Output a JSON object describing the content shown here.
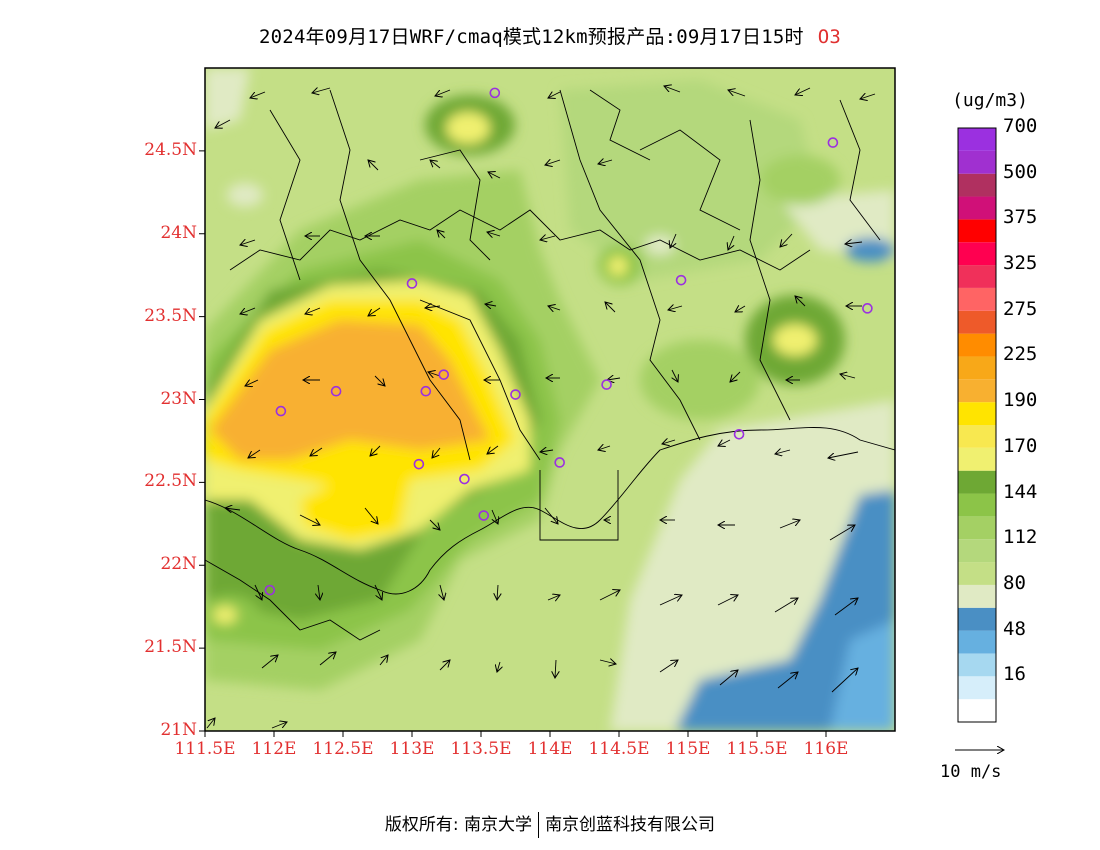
{
  "title": "2024年09月17日WRF/cmaq模式12km预报产品:09月17日15时",
  "pollutant": "O3",
  "colorbar": {
    "unit": "(ug/m3)",
    "bands": [
      {
        "color": "#ffffff"
      },
      {
        "color": "#d6eefa",
        "label": "16"
      },
      {
        "color": "#a6d8f0"
      },
      {
        "color": "#66b0e0",
        "label": "48"
      },
      {
        "color": "#4a8fc4"
      },
      {
        "color": "#e0eac4",
        "label": "80"
      },
      {
        "color": "#c4df86"
      },
      {
        "color": "#b4d87c",
        "label": "112"
      },
      {
        "color": "#a4d064"
      },
      {
        "color": "#8cc448",
        "label": "144"
      },
      {
        "color": "#6ea834"
      },
      {
        "color": "#f0f070",
        "label": "170"
      },
      {
        "color": "#f8e850"
      },
      {
        "color": "#ffe400",
        "label": "190"
      },
      {
        "color": "#f8b030"
      },
      {
        "color": "#f8a818",
        "label": "225"
      },
      {
        "color": "#ff8c00"
      },
      {
        "color": "#ee5a2a",
        "label": "275"
      },
      {
        "color": "#ff6464"
      },
      {
        "color": "#f0305a",
        "label": "325"
      },
      {
        "color": "#ff0050"
      },
      {
        "color": "#ff0000",
        "label": "375"
      },
      {
        "color": "#d01078"
      },
      {
        "color": "#b03060",
        "label": "500"
      },
      {
        "color": "#a030d0"
      },
      {
        "color": "#9b30e0",
        "label": "700"
      }
    ]
  },
  "axes": {
    "y_ticks": [
      "24.5N",
      "24N",
      "23.5N",
      "23N",
      "22.5N",
      "22N",
      "21.5N",
      "21N"
    ],
    "x_ticks": [
      "111.5E",
      "112E",
      "112.5E",
      "113E",
      "113.5E",
      "114E",
      "114.5E",
      "115E",
      "115.5E",
      "116E"
    ]
  },
  "wind_reference": {
    "label": "10 m/s"
  },
  "stations": [
    {
      "lon": 113.6,
      "lat": 24.85
    },
    {
      "lon": 116.05,
      "lat": 24.55
    },
    {
      "lon": 113.0,
      "lat": 23.7
    },
    {
      "lon": 114.95,
      "lat": 23.72
    },
    {
      "lon": 116.3,
      "lat": 23.55
    },
    {
      "lon": 113.23,
      "lat": 23.15
    },
    {
      "lon": 112.45,
      "lat": 23.05
    },
    {
      "lon": 113.1,
      "lat": 23.05
    },
    {
      "lon": 113.75,
      "lat": 23.03
    },
    {
      "lon": 114.41,
      "lat": 23.09
    },
    {
      "lon": 112.05,
      "lat": 22.93
    },
    {
      "lon": 115.37,
      "lat": 22.79
    },
    {
      "lon": 113.05,
      "lat": 22.61
    },
    {
      "lon": 114.07,
      "lat": 22.62
    },
    {
      "lon": 113.38,
      "lat": 22.52
    },
    {
      "lon": 113.52,
      "lat": 22.3
    },
    {
      "lon": 111.97,
      "lat": 21.85
    }
  ],
  "footer": {
    "left": "版权所有: 南京大学",
    "right": "南京创蓝科技有限公司"
  }
}
